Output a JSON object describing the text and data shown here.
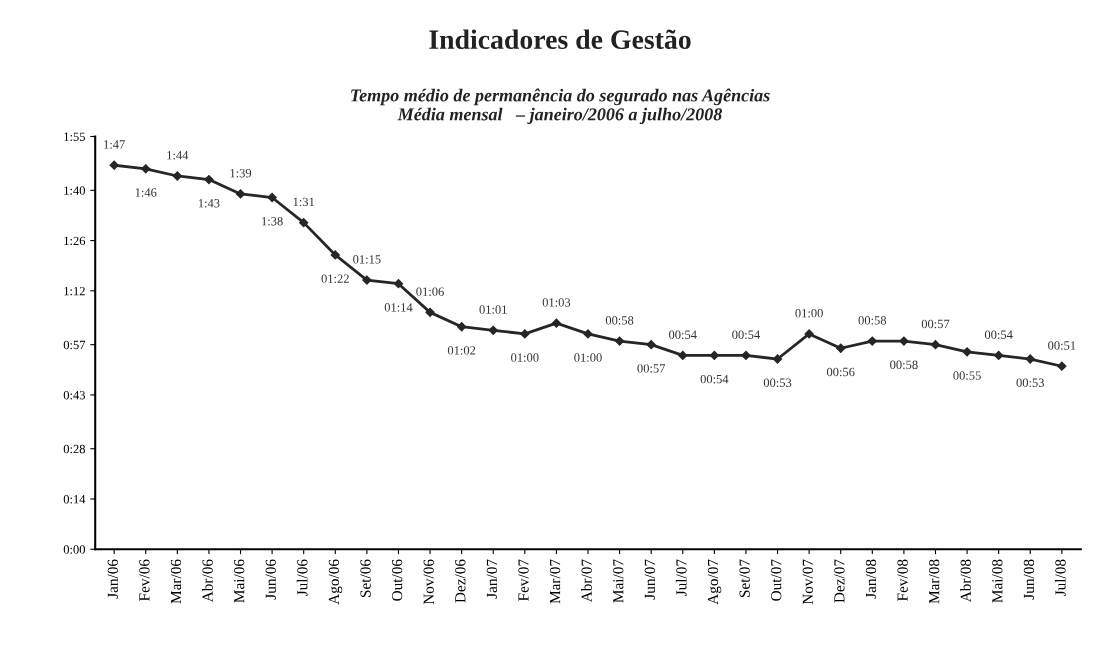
{
  "chart_data": {
    "type": "line",
    "title": "Indicadores de Gestão",
    "subtitle": "Tempo médio de permanência do segurado nas Agências\nMédia mensal   – janeiro/2006 a julho/2008",
    "categories": [
      "Jan/06",
      "Fev/06",
      "Mar/06",
      "Abr/06",
      "Mai/06",
      "Jun/06",
      "Jul/06",
      "Ago/06",
      "Set/06",
      "Out/06",
      "Nov/06",
      "Dez/06",
      "Jan/07",
      "Fev/07",
      "Mar/07",
      "Abr/07",
      "Mai/07",
      "Jun/07",
      "Jul/07",
      "Ago/07",
      "Set/07",
      "Out/07",
      "Nov/07",
      "Dez/07",
      "Jan/08",
      "Fev/08",
      "Mar/08",
      "Abr/08",
      "Mai/08",
      "Jun/08",
      "Jul/08"
    ],
    "series": [
      {
        "color": "#262626",
        "values": [
          107,
          106,
          104,
          103,
          99,
          98,
          91,
          82,
          75,
          74,
          66,
          62,
          61,
          60,
          63,
          60,
          58,
          57,
          54,
          54,
          54,
          53,
          60,
          56,
          58,
          58,
          57,
          55,
          54,
          53,
          51
        ],
        "value_labels": [
          "1:47",
          "1:46",
          "1:44",
          "1:43",
          "1:39",
          "1:38",
          "1:31",
          "01:22",
          "01:15",
          "01:14",
          "01:06",
          "01:02",
          "01:01",
          "01:00",
          "01:03",
          "01:00",
          "00:58",
          "00:57",
          "00:54",
          "00:54",
          "00:54",
          "00:53",
          "01:00",
          "00:56",
          "00:58",
          "00:58",
          "00:57",
          "00:55",
          "00:54",
          "00:53",
          "00:51"
        ]
      }
    ],
    "ylim": [
      0,
      115
    ],
    "yticks": [
      {
        "value": 0,
        "label": "0:00"
      },
      {
        "value": 14,
        "label": "0:14"
      },
      {
        "value": 28,
        "label": "0:28"
      },
      {
        "value": 43,
        "label": "0:43"
      },
      {
        "value": 57,
        "label": "0:57"
      },
      {
        "value": 72,
        "label": "1:12"
      },
      {
        "value": 86,
        "label": "1:26"
      },
      {
        "value": 100,
        "label": "1:40"
      },
      {
        "value": 115,
        "label": "1:55"
      }
    ],
    "marker": "diamond",
    "line_style": "solid",
    "grid": false,
    "legend": false
  }
}
